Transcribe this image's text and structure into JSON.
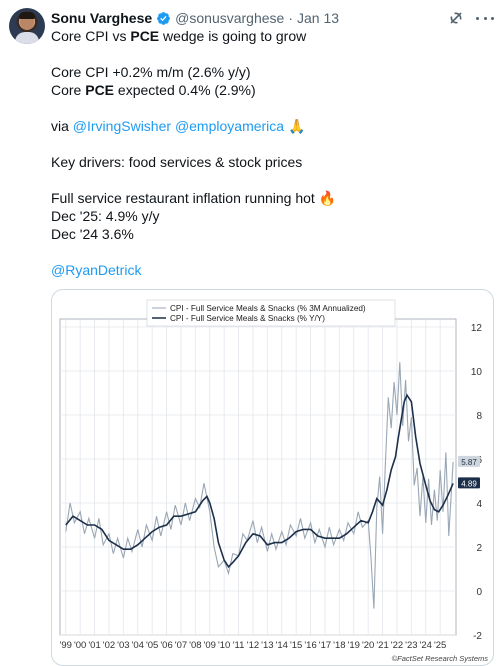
{
  "tweet": {
    "author_name": "Sonu Varghese",
    "handle": "@sonusvarghese",
    "separator": "·",
    "date": "Jan 13",
    "lines": [
      [
        {
          "t": "Core CPI vs "
        },
        {
          "t": "PCE",
          "b": true
        },
        {
          "t": " wedge is going to grow"
        }
      ],
      [],
      [
        {
          "t": "Core CPI +0.2% m/m (2.6% y/y)"
        }
      ],
      [
        {
          "t": "Core "
        },
        {
          "t": "PCE",
          "b": true
        },
        {
          "t": " expected 0.4% (2.9%)"
        }
      ],
      [],
      [
        {
          "t": "via "
        },
        {
          "t": "@IrvingSwisher",
          "link": true
        },
        {
          "t": " "
        },
        {
          "t": "@employamerica",
          "link": true
        },
        {
          "t": " 🙏"
        }
      ],
      [],
      [
        {
          "t": "Key drivers: food services & stock prices"
        }
      ],
      [],
      [
        {
          "t": "Full service restaurant inflation running hot 🔥"
        }
      ],
      [
        {
          "t": "Dec '25: 4.9% y/y"
        }
      ],
      [
        {
          "t": "Dec '24 3.6%"
        }
      ],
      [],
      [
        {
          "t": "@RyanDetrick",
          "link": true
        }
      ]
    ]
  },
  "icons": {
    "verified": "verified-badge-icon",
    "grok": "grok-icon",
    "more": "more-options-icon"
  },
  "colors": {
    "link": "#1d9bf0",
    "verified": "#1d9bf0",
    "series_3m": "#9aa7b5",
    "series_yy": "#1c2f4a"
  },
  "chart_data": {
    "type": "line",
    "series": [
      {
        "name": "CPI - Full Service Meals & Snacks (% 3M Annualized)"
      },
      {
        "name": "CPI - Full Service Meals & Snacks (% Y/Y)"
      }
    ],
    "x_ticks": [
      "'99",
      "'00",
      "'01",
      "'02",
      "'03",
      "'04",
      "'05",
      "'06",
      "'07",
      "'08",
      "'09",
      "'10",
      "'11",
      "'12",
      "'13",
      "'14",
      "'15",
      "'16",
      "'17",
      "'18",
      "'19",
      "'20",
      "'21",
      "'22",
      "'23",
      "'24",
      "'25"
    ],
    "y_ticks": [
      -2,
      0,
      2,
      4,
      6,
      8,
      10,
      12
    ],
    "ylim": [
      -2,
      12
    ],
    "xlim": [
      1998.6,
      2026.1
    ],
    "grid": true,
    "legend": "top-left",
    "y_axis_side": "right",
    "last_value_labels": [
      "5.87",
      "4.89"
    ],
    "source": "©FactSet Research Systems",
    "yoy_points": [
      [
        1999.0,
        3.0
      ],
      [
        1999.5,
        3.4
      ],
      [
        2000.0,
        3.2
      ],
      [
        2000.5,
        3.0
      ],
      [
        2001.0,
        3.0
      ],
      [
        2001.5,
        2.8
      ],
      [
        2002.0,
        2.3
      ],
      [
        2002.5,
        2.1
      ],
      [
        2003.0,
        1.9
      ],
      [
        2003.5,
        1.9
      ],
      [
        2004.0,
        2.1
      ],
      [
        2004.5,
        2.4
      ],
      [
        2005.0,
        2.7
      ],
      [
        2005.5,
        2.9
      ],
      [
        2006.0,
        3.0
      ],
      [
        2006.5,
        3.4
      ],
      [
        2007.0,
        3.4
      ],
      [
        2007.5,
        3.5
      ],
      [
        2008.0,
        3.6
      ],
      [
        2008.5,
        4.1
      ],
      [
        2008.8,
        4.3
      ],
      [
        2009.0,
        4.0
      ],
      [
        2009.3,
        3.3
      ],
      [
        2009.6,
        2.2
      ],
      [
        2010.0,
        1.4
      ],
      [
        2010.3,
        1.1
      ],
      [
        2010.6,
        1.3
      ],
      [
        2011.0,
        1.6
      ],
      [
        2011.5,
        2.2
      ],
      [
        2012.0,
        2.6
      ],
      [
        2012.5,
        2.5
      ],
      [
        2013.0,
        2.1
      ],
      [
        2013.5,
        2.2
      ],
      [
        2014.0,
        2.2
      ],
      [
        2014.5,
        2.4
      ],
      [
        2015.0,
        2.7
      ],
      [
        2015.5,
        2.8
      ],
      [
        2016.0,
        2.8
      ],
      [
        2016.5,
        2.5
      ],
      [
        2017.0,
        2.4
      ],
      [
        2017.5,
        2.4
      ],
      [
        2018.0,
        2.4
      ],
      [
        2018.5,
        2.6
      ],
      [
        2019.0,
        2.9
      ],
      [
        2019.5,
        3.2
      ],
      [
        2020.0,
        3.1
      ],
      [
        2020.3,
        3.6
      ],
      [
        2020.6,
        4.2
      ],
      [
        2021.0,
        3.9
      ],
      [
        2021.3,
        4.6
      ],
      [
        2021.6,
        5.5
      ],
      [
        2021.9,
        6.1
      ],
      [
        2022.1,
        7.0
      ],
      [
        2022.3,
        7.8
      ],
      [
        2022.5,
        8.6
      ],
      [
        2022.7,
        8.9
      ],
      [
        2023.0,
        8.6
      ],
      [
        2023.3,
        7.0
      ],
      [
        2023.6,
        5.8
      ],
      [
        2024.0,
        4.8
      ],
      [
        2024.3,
        4.1
      ],
      [
        2024.6,
        3.7
      ],
      [
        2024.9,
        3.6
      ],
      [
        2025.2,
        3.9
      ],
      [
        2025.5,
        4.3
      ],
      [
        2025.9,
        4.89
      ]
    ],
    "ann3m_points": [
      [
        1999.0,
        2.7
      ],
      [
        1999.3,
        4.0
      ],
      [
        1999.6,
        3.1
      ],
      [
        2000.0,
        3.6
      ],
      [
        2000.3,
        2.6
      ],
      [
        2000.6,
        3.3
      ],
      [
        2001.0,
        2.4
      ],
      [
        2001.3,
        3.3
      ],
      [
        2001.6,
        2.1
      ],
      [
        2002.0,
        2.6
      ],
      [
        2002.3,
        1.7
      ],
      [
        2002.6,
        2.4
      ],
      [
        2003.0,
        1.5
      ],
      [
        2003.3,
        2.4
      ],
      [
        2003.6,
        1.8
      ],
      [
        2004.0,
        2.8
      ],
      [
        2004.3,
        2.0
      ],
      [
        2004.6,
        3.0
      ],
      [
        2005.0,
        2.3
      ],
      [
        2005.3,
        3.4
      ],
      [
        2005.6,
        2.5
      ],
      [
        2006.0,
        3.6
      ],
      [
        2006.3,
        2.8
      ],
      [
        2006.6,
        3.9
      ],
      [
        2007.0,
        3.0
      ],
      [
        2007.3,
        4.0
      ],
      [
        2007.6,
        3.2
      ],
      [
        2008.0,
        4.2
      ],
      [
        2008.3,
        3.8
      ],
      [
        2008.6,
        4.9
      ],
      [
        2009.0,
        3.6
      ],
      [
        2009.3,
        2.0
      ],
      [
        2009.6,
        1.1
      ],
      [
        2010.0,
        1.4
      ],
      [
        2010.3,
        0.8
      ],
      [
        2010.6,
        1.7
      ],
      [
        2011.0,
        1.6
      ],
      [
        2011.3,
        2.6
      ],
      [
        2011.6,
        2.3
      ],
      [
        2012.0,
        3.2
      ],
      [
        2012.3,
        2.2
      ],
      [
        2012.6,
        2.9
      ],
      [
        2013.0,
        1.8
      ],
      [
        2013.3,
        2.6
      ],
      [
        2013.6,
        1.9
      ],
      [
        2014.0,
        2.7
      ],
      [
        2014.3,
        2.1
      ],
      [
        2014.6,
        3.0
      ],
      [
        2015.0,
        2.5
      ],
      [
        2015.3,
        3.3
      ],
      [
        2015.6,
        2.4
      ],
      [
        2016.0,
        3.1
      ],
      [
        2016.3,
        2.2
      ],
      [
        2016.6,
        2.8
      ],
      [
        2017.0,
        2.0
      ],
      [
        2017.3,
        2.9
      ],
      [
        2017.6,
        2.1
      ],
      [
        2018.0,
        2.8
      ],
      [
        2018.3,
        2.3
      ],
      [
        2018.6,
        3.1
      ],
      [
        2019.0,
        2.6
      ],
      [
        2019.3,
        3.6
      ],
      [
        2019.6,
        2.9
      ],
      [
        2020.0,
        3.2
      ],
      [
        2020.2,
        1.5
      ],
      [
        2020.4,
        -0.8
      ],
      [
        2020.6,
        3.8
      ],
      [
        2020.8,
        5.2
      ],
      [
        2021.0,
        2.6
      ],
      [
        2021.2,
        5.8
      ],
      [
        2021.4,
        8.8
      ],
      [
        2021.6,
        7.4
      ],
      [
        2021.8,
        9.5
      ],
      [
        2022.0,
        8.0
      ],
      [
        2022.2,
        10.4
      ],
      [
        2022.4,
        7.5
      ],
      [
        2022.6,
        9.6
      ],
      [
        2022.8,
        6.8
      ],
      [
        2023.0,
        7.9
      ],
      [
        2023.2,
        4.8
      ],
      [
        2023.4,
        5.6
      ],
      [
        2023.6,
        3.4
      ],
      [
        2023.8,
        5.2
      ],
      [
        2024.0,
        3.1
      ],
      [
        2024.2,
        5.1
      ],
      [
        2024.4,
        3.0
      ],
      [
        2024.6,
        4.6
      ],
      [
        2024.8,
        3.2
      ],
      [
        2025.0,
        5.5
      ],
      [
        2025.2,
        3.6
      ],
      [
        2025.4,
        6.3
      ],
      [
        2025.6,
        2.5
      ],
      [
        2025.9,
        5.87
      ]
    ]
  }
}
